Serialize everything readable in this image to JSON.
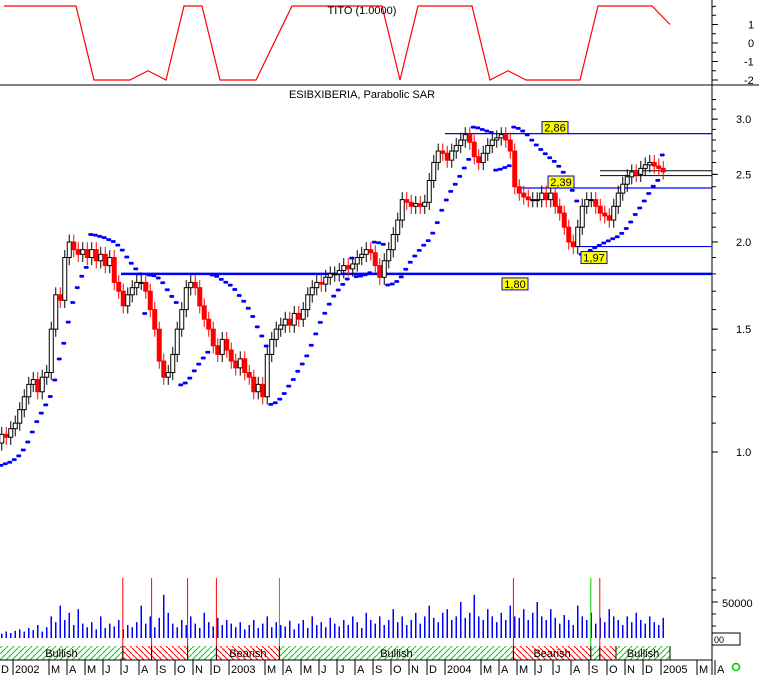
{
  "chart_data": {
    "type": "candlestick",
    "title": "ESIBXIBERIA, Parabolic SAR",
    "indicator_title": "TITO (1.0000)",
    "y_scale": "log",
    "ylim": [
      0.8,
      3.3
    ],
    "price_ticks": [
      "3.0",
      "2.5",
      "2.0",
      "1.5",
      "1.0"
    ],
    "tito_ticks": [
      "1",
      "0",
      "-1",
      "-2"
    ],
    "volume_tick": "50000",
    "volume_box_label": "00",
    "time_labels": [
      {
        "m": -1,
        "t": "D"
      },
      {
        "m": 0,
        "t": "2002"
      },
      {
        "m": 2,
        "t": "M"
      },
      {
        "m": 3,
        "t": "A"
      },
      {
        "m": 4,
        "t": "M"
      },
      {
        "m": 5,
        "t": "J"
      },
      {
        "m": 6,
        "t": "J"
      },
      {
        "m": 7,
        "t": "A"
      },
      {
        "m": 8,
        "t": "S"
      },
      {
        "m": 9,
        "t": "O"
      },
      {
        "m": 10,
        "t": "N"
      },
      {
        "m": 11,
        "t": "D"
      },
      {
        "m": 12,
        "t": "2003"
      },
      {
        "m": 14,
        "t": "M"
      },
      {
        "m": 15,
        "t": "A"
      },
      {
        "m": 16,
        "t": "M"
      },
      {
        "m": 17,
        "t": "J"
      },
      {
        "m": 18,
        "t": "J"
      },
      {
        "m": 19,
        "t": "A"
      },
      {
        "m": 20,
        "t": "S"
      },
      {
        "m": 21,
        "t": "O"
      },
      {
        "m": 22,
        "t": "N"
      },
      {
        "m": 23,
        "t": "D"
      },
      {
        "m": 24,
        "t": "2004"
      },
      {
        "m": 26,
        "t": "M"
      },
      {
        "m": 27,
        "t": "A"
      },
      {
        "m": 28,
        "t": "M"
      },
      {
        "m": 29,
        "t": "J"
      },
      {
        "m": 30,
        "t": "J"
      },
      {
        "m": 31,
        "t": "A"
      },
      {
        "m": 32,
        "t": "S"
      },
      {
        "m": 33,
        "t": "O"
      },
      {
        "m": 34,
        "t": "N"
      },
      {
        "m": 35,
        "t": "D"
      },
      {
        "m": 36,
        "t": "2005"
      },
      {
        "m": 38,
        "t": "M"
      },
      {
        "m": 39,
        "t": "A"
      }
    ],
    "weekly_closes_by_month": [
      {
        "month": "2001-12",
        "c": [
          1.03,
          1.06,
          1.05,
          1.08
        ]
      },
      {
        "month": "2002-01",
        "c": [
          1.1,
          1.15,
          1.2,
          1.25
        ]
      },
      {
        "month": "2002-02",
        "c": [
          1.27,
          1.22,
          1.28,
          1.3
        ]
      },
      {
        "month": "2002-03",
        "c": [
          1.5,
          1.68,
          1.65,
          1.9
        ]
      },
      {
        "month": "2002-04",
        "c": [
          2.0,
          1.95,
          1.92,
          1.95
        ]
      },
      {
        "month": "2002-05",
        "c": [
          1.9,
          1.95,
          1.88,
          1.92
        ]
      },
      {
        "month": "2002-06",
        "c": [
          1.85,
          1.9,
          1.75,
          1.7
        ]
      },
      {
        "month": "2002-07",
        "c": [
          1.62,
          1.68,
          1.72,
          1.75
        ]
      },
      {
        "month": "2002-08",
        "c": [
          1.75,
          1.7,
          1.6,
          1.5
        ]
      },
      {
        "month": "2002-09",
        "c": [
          1.35,
          1.28,
          1.3,
          1.38
        ]
      },
      {
        "month": "2002-10",
        "c": [
          1.5,
          1.6,
          1.72,
          1.75
        ]
      },
      {
        "month": "2002-11",
        "c": [
          1.72,
          1.62,
          1.55,
          1.5
        ]
      },
      {
        "month": "2002-12",
        "c": [
          1.42,
          1.38,
          1.45,
          1.4
        ]
      },
      {
        "month": "2003-01",
        "c": [
          1.35,
          1.32,
          1.36,
          1.3
        ]
      },
      {
        "month": "2003-02",
        "c": [
          1.28,
          1.22,
          1.25,
          1.2
        ]
      },
      {
        "month": "2003-03",
        "c": [
          1.38,
          1.45,
          1.5,
          1.52
        ]
      },
      {
        "month": "2003-04",
        "c": [
          1.55,
          1.52,
          1.58,
          1.55
        ]
      },
      {
        "month": "2003-05",
        "c": [
          1.6,
          1.68,
          1.72,
          1.75
        ]
      },
      {
        "month": "2003-06",
        "c": [
          1.74,
          1.78,
          1.8,
          1.8
        ]
      },
      {
        "month": "2003-07",
        "c": [
          1.82,
          1.85,
          1.83,
          1.86
        ]
      },
      {
        "month": "2003-08",
        "c": [
          1.9,
          1.92,
          1.95,
          1.93
        ]
      },
      {
        "month": "2003-09",
        "c": [
          1.85,
          1.78,
          1.88,
          1.95
        ]
      },
      {
        "month": "2003-10",
        "c": [
          2.05,
          2.15,
          2.3,
          2.28
        ]
      },
      {
        "month": "2003-11",
        "c": [
          2.25,
          2.27,
          2.25,
          2.28
        ]
      },
      {
        "month": "2003-12",
        "c": [
          2.45,
          2.6,
          2.7,
          2.68
        ]
      },
      {
        "month": "2004-01",
        "c": [
          2.62,
          2.7,
          2.75,
          2.8
        ]
      },
      {
        "month": "2004-02",
        "c": [
          2.85,
          2.78,
          2.65,
          2.6
        ]
      },
      {
        "month": "2004-03",
        "c": [
          2.68,
          2.75,
          2.8,
          2.82
        ]
      },
      {
        "month": "2004-04",
        "c": [
          2.85,
          2.8,
          2.7,
          2.4
        ]
      },
      {
        "month": "2004-05",
        "c": [
          2.35,
          2.32,
          2.3,
          2.3
        ]
      },
      {
        "month": "2004-06",
        "c": [
          2.3,
          2.35,
          2.3,
          2.35
        ]
      },
      {
        "month": "2004-07",
        "c": [
          2.25,
          2.2,
          2.1,
          2.0
        ]
      },
      {
        "month": "2004-08",
        "c": [
          1.97,
          2.1,
          2.25,
          2.3
        ]
      },
      {
        "month": "2004-09",
        "c": [
          2.3,
          2.25,
          2.2,
          2.18
        ]
      },
      {
        "month": "2004-10",
        "c": [
          2.15,
          2.25,
          2.35,
          2.42
        ]
      },
      {
        "month": "2004-11",
        "c": [
          2.48,
          2.52,
          2.5,
          2.55
        ]
      },
      {
        "month": "2004-12",
        "c": [
          2.58,
          2.6,
          2.57,
          2.55
        ]
      },
      {
        "month": "2005-01",
        "c": [
          2.52
        ]
      }
    ],
    "tito_by_month": [
      2,
      2,
      2,
      2,
      2,
      -2,
      -2,
      -2,
      -1.5,
      -2,
      2,
      2,
      -2,
      -2,
      -2,
      0,
      2,
      2,
      2,
      2,
      2,
      2,
      -2,
      2,
      2,
      2,
      2,
      -2,
      -1.5,
      -2,
      -2,
      -2,
      -2,
      2,
      2,
      2,
      2,
      1
    ],
    "levels": [
      {
        "value": 2.86,
        "label": "2,86",
        "from_month": 24
      },
      {
        "value": 2.39,
        "label": "2,39",
        "from_month": 28
      },
      {
        "value": 1.97,
        "label": "1,97",
        "from_month": 31
      },
      {
        "value": 1.8,
        "label": "1,80",
        "from_month": 6,
        "thick": true
      }
    ],
    "trend_bands": [
      {
        "from": -1.7,
        "to": 6.1,
        "label": "Bullish",
        "type": "bull"
      },
      {
        "from": 6.1,
        "to": 7.7,
        "label": "",
        "type": "bear"
      },
      {
        "from": 7.7,
        "to": 9.7,
        "label": "",
        "type": "bear"
      },
      {
        "from": 9.7,
        "to": 11.3,
        "label": "",
        "type": "bull"
      },
      {
        "from": 11.3,
        "to": 14.8,
        "label": "Bearish",
        "type": "bear"
      },
      {
        "from": 14.8,
        "to": 27.8,
        "label": "Bullish",
        "type": "bull"
      },
      {
        "from": 27.8,
        "to": 32.1,
        "label": "Bearish",
        "type": "bear"
      },
      {
        "from": 32.1,
        "to": 32.6,
        "label": "",
        "type": "bull"
      },
      {
        "from": 32.6,
        "to": 33.5,
        "label": "",
        "type": "bear"
      },
      {
        "from": 33.5,
        "to": 36.5,
        "label": "Bullish",
        "type": "bull"
      }
    ],
    "signals": [
      {
        "m": 6.1,
        "type": "sell"
      },
      {
        "m": 7.7,
        "type": "sell"
      },
      {
        "m": 9.7,
        "type": "sell"
      },
      {
        "m": 11.3,
        "type": "sell"
      },
      {
        "m": 14.8,
        "type": "buy"
      },
      {
        "m": 27.8,
        "type": "sell"
      },
      {
        "m": 32.1,
        "type": "buy"
      },
      {
        "m": 32.6,
        "type": "sell"
      }
    ],
    "volumes": [
      8000,
      6000,
      9000,
      7000,
      10000,
      12000,
      9000,
      14000,
      11000,
      18000,
      9000,
      15000,
      30000,
      22000,
      45000,
      25000,
      35000,
      18000,
      40000,
      20000,
      15000,
      22000,
      12000,
      30000,
      14000,
      20000,
      16000,
      25000,
      12000,
      18000,
      15000,
      22000,
      45000,
      20000,
      30000,
      15000,
      28000,
      60000,
      35000,
      20000,
      15000,
      25000,
      18000,
      30000,
      20000,
      14000,
      35000,
      22000,
      16000,
      28000,
      18000,
      25000,
      20000,
      15000,
      22000,
      12000,
      18000,
      25000,
      14000,
      20000,
      30000,
      15000,
      22000,
      18000,
      16000,
      24000,
      12000,
      20000,
      25000,
      14000,
      30000,
      18000,
      22000,
      15000,
      28000,
      20000,
      16000,
      25000,
      18000,
      30000,
      22000,
      14000,
      35000,
      25000,
      20000,
      30000,
      18000,
      25000,
      40000,
      22000,
      30000,
      18000,
      25000,
      35000,
      20000,
      30000,
      45000,
      28000,
      22000,
      35000,
      40000,
      25000,
      30000,
      50000,
      28000,
      35000,
      60000,
      30000,
      25000,
      40000,
      30000,
      22000,
      35000,
      25000,
      45000,
      30000,
      28000,
      40000,
      25000,
      35000,
      50000,
      30000,
      25000,
      40000,
      28000,
      20000,
      32000,
      25000,
      18000,
      45000,
      30000,
      25000,
      35000,
      20000,
      28000,
      22000,
      40000,
      30000,
      25000,
      18000,
      30000,
      22000,
      35000,
      25000,
      20000,
      30000,
      22000,
      18000,
      28000,
      25000,
      20000,
      30000
    ],
    "colors": {
      "up": "#ffffff",
      "down": "#ff0000",
      "sar": "#0000ff",
      "tito": "#ff0000",
      "level": "#0000ff",
      "label_bg": "#ffff00",
      "volume": "#0000ff",
      "bull": "#00cc00",
      "bear": "#ff0000"
    }
  }
}
